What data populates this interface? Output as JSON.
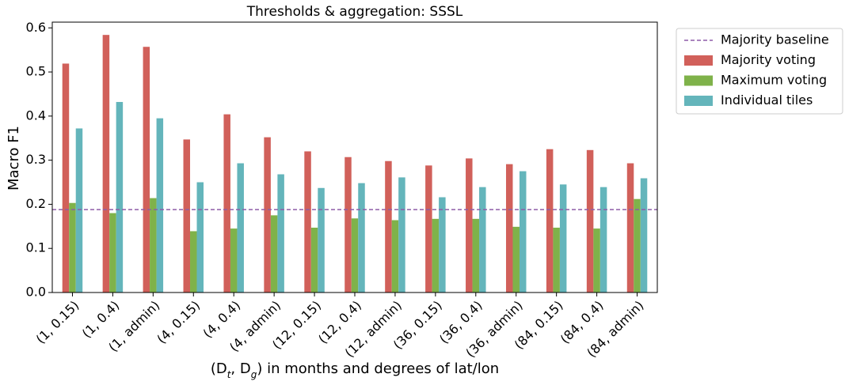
{
  "chart_data": {
    "type": "bar",
    "title": "Thresholds & aggregation: SSSL",
    "xlabel": "(D_t, D_g) in months and degrees of lat/lon",
    "ylabel": "Macro F1",
    "categories": [
      "(1, 0.15)",
      "(1, 0.4)",
      "(1, admin)",
      "(4, 0.15)",
      "(4, 0.4)",
      "(4, admin)",
      "(12, 0.15)",
      "(12, 0.4)",
      "(12, admin)",
      "(36, 0.15)",
      "(36, 0.4)",
      "(36, admin)",
      "(84, 0.15)",
      "(84, 0.4)",
      "(84, admin)"
    ],
    "series": [
      {
        "name": "Majority voting",
        "color": "#d1605a",
        "values": [
          0.519,
          0.584,
          0.557,
          0.347,
          0.404,
          0.352,
          0.32,
          0.307,
          0.298,
          0.288,
          0.304,
          0.291,
          0.325,
          0.323,
          0.293
        ]
      },
      {
        "name": "Maximum voting",
        "color": "#7fb24a",
        "values": [
          0.203,
          0.18,
          0.214,
          0.139,
          0.145,
          0.175,
          0.147,
          0.168,
          0.164,
          0.167,
          0.167,
          0.149,
          0.147,
          0.145,
          0.212
        ]
      },
      {
        "name": "Individual tiles",
        "color": "#64b5bb",
        "values": [
          0.372,
          0.432,
          0.395,
          0.25,
          0.293,
          0.268,
          0.237,
          0.248,
          0.261,
          0.216,
          0.239,
          0.275,
          0.245,
          0.239,
          0.259
        ]
      }
    ],
    "baseline": {
      "name": "Majority baseline",
      "value": 0.188,
      "color": "#8e5ca8"
    },
    "ylim": [
      0,
      0.613
    ],
    "yticks": [
      {
        "value": 0,
        "label": "0.0"
      },
      0.1,
      0.2,
      0.3,
      0.4,
      0.5,
      0.6
    ],
    "legend": "outside-upper-right"
  }
}
